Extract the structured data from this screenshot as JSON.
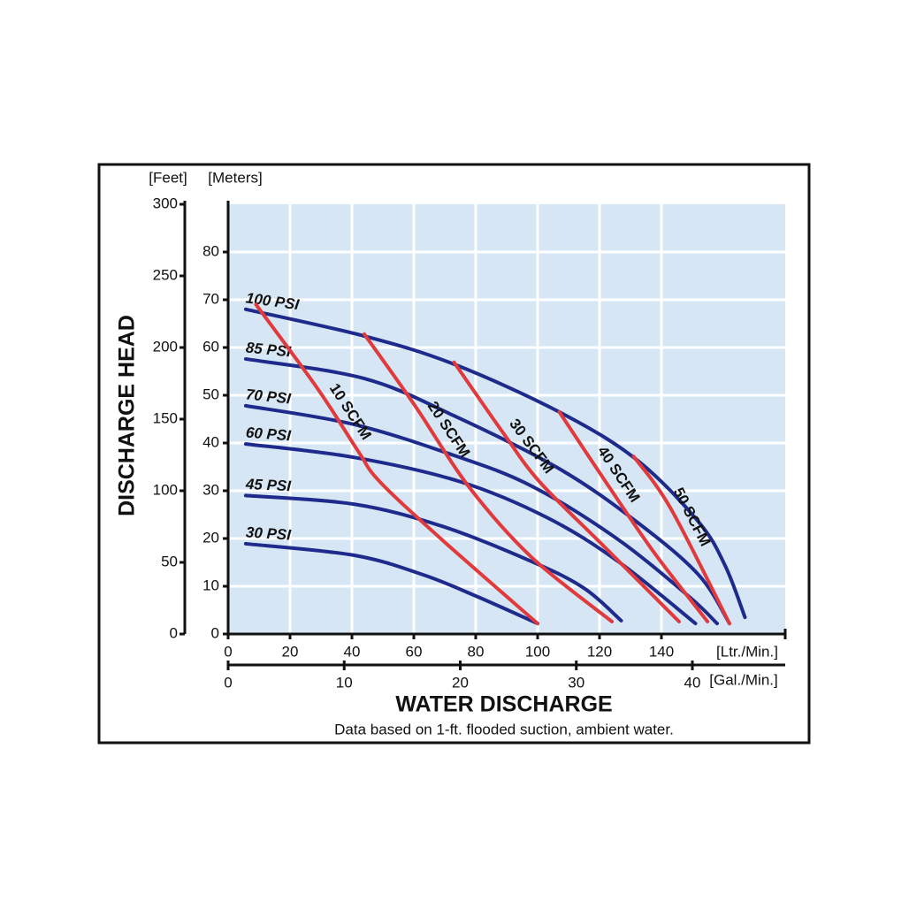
{
  "chart_data": {
    "type": "line",
    "y_label": "DISCHARGE HEAD",
    "x_label": "WATER DISCHARGE",
    "note": "Data based on 1-ft. flooded suction, ambient water.",
    "y_unit": "[Meters]",
    "y2_unit": "[Feet]",
    "x_unit": "[Ltr./Min.]",
    "x2_unit": "[Gal./Min.]",
    "xlim": [
      0,
      180
    ],
    "xticks": [
      0,
      20,
      40,
      60,
      80,
      100,
      120,
      140
    ],
    "x2lim": [
      0,
      48
    ],
    "x2ticks": [
      0,
      10,
      20,
      30,
      40
    ],
    "ylim": [
      0,
      90
    ],
    "yticks": [
      0,
      10,
      20,
      30,
      40,
      50,
      60,
      70,
      80
    ],
    "y2lim": [
      0,
      300
    ],
    "y2ticks": [
      0,
      50,
      100,
      150,
      200,
      250,
      300
    ],
    "grid": true,
    "background": "#d6e6f4",
    "series": [
      {
        "name": "100 PSI",
        "color": "#1e2b8c",
        "x": [
          5.7,
          44,
          73,
          107,
          132,
          152,
          160.6,
          167
        ],
        "values": [
          68,
          62.4,
          56.5,
          46.5,
          36.5,
          23.5,
          14.3,
          3.5
        ]
      },
      {
        "name": "85 PSI",
        "color": "#1e2b8c",
        "x": [
          5.7,
          44,
          73,
          107,
          132,
          152,
          162
        ],
        "values": [
          57.6,
          53.5,
          45.7,
          34.6,
          23.5,
          12.4,
          2.2
        ]
      },
      {
        "name": "70 PSI",
        "color": "#1e2b8c",
        "x": [
          5.7,
          40.6,
          73,
          98,
          126,
          149,
          158
        ],
        "values": [
          47.8,
          43.9,
          37.4,
          31,
          19.8,
          7.8,
          2.2
        ]
      },
      {
        "name": "60 PSI",
        "color": "#1e2b8c",
        "x": [
          5.7,
          40.6,
          75,
          103,
          126,
          151
        ],
        "values": [
          39.8,
          37,
          31.9,
          24.4,
          15.2,
          2.2
        ]
      },
      {
        "name": "45 PSI",
        "color": "#1e2b8c",
        "x": [
          5.7,
          40.6,
          69,
          98,
          115,
          127
        ],
        "values": [
          29,
          27.2,
          22.6,
          15.2,
          9.6,
          2.8
        ]
      },
      {
        "name": "30 PSI",
        "color": "#1e2b8c",
        "x": [
          5.7,
          40.6,
          63,
          80.6,
          100
        ],
        "values": [
          18.9,
          16.5,
          12.4,
          7.8,
          2.2
        ]
      },
      {
        "name": "10 SCFM",
        "color": "#e03a3c",
        "x": [
          9,
          29,
          42,
          49,
          69,
          100
        ],
        "values": [
          69,
          51.3,
          38.3,
          31.9,
          19.8,
          2.2
        ]
      },
      {
        "name": "20 SCFM",
        "color": "#e03a3c",
        "x": [
          44,
          60.6,
          77.7,
          98,
          124
        ],
        "values": [
          62.8,
          47.6,
          30.9,
          16.1,
          2.6
        ]
      },
      {
        "name": "30 SCFM",
        "color": "#e03a3c",
        "x": [
          73,
          89,
          100.6,
          120.6,
          145.7
        ],
        "values": [
          56.9,
          42,
          31.9,
          18.9,
          2.6
        ]
      },
      {
        "name": "40 SCFM",
        "color": "#e03a3c",
        "x": [
          107,
          123,
          137.7,
          154.9
        ],
        "values": [
          46.5,
          30.9,
          17,
          2.6
        ]
      },
      {
        "name": "50 SCFM",
        "color": "#e03a3c",
        "x": [
          131,
          143,
          162
        ],
        "values": [
          37.2,
          26.3,
          2.2
        ]
      }
    ]
  }
}
